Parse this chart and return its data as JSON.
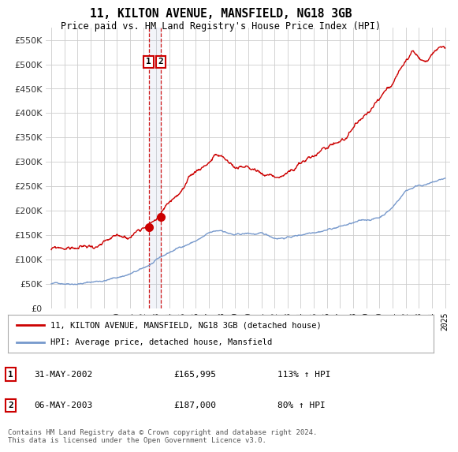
{
  "title": "11, KILTON AVENUE, MANSFIELD, NG18 3GB",
  "subtitle": "Price paid vs. HM Land Registry's House Price Index (HPI)",
  "ylim": [
    0,
    575000
  ],
  "yticks": [
    0,
    50000,
    100000,
    150000,
    200000,
    250000,
    300000,
    350000,
    400000,
    450000,
    500000,
    550000
  ],
  "hpi_color": "#7799cc",
  "price_color": "#cc0000",
  "background_color": "#ffffff",
  "grid_color": "#cccccc",
  "purchase_dates": [
    2002.415,
    2003.347
  ],
  "purchase_prices": [
    165995,
    187000
  ],
  "purchase_labels": [
    "1",
    "2"
  ],
  "legend_entries": [
    "11, KILTON AVENUE, MANSFIELD, NG18 3GB (detached house)",
    "HPI: Average price, detached house, Mansfield"
  ],
  "table_rows": [
    [
      "1",
      "31-MAY-2002",
      "£165,995",
      "113% ↑ HPI"
    ],
    [
      "2",
      "06-MAY-2003",
      "£187,000",
      "80% ↑ HPI"
    ]
  ],
  "footnote": "Contains HM Land Registry data © Crown copyright and database right 2024.\nThis data is licensed under the Open Government Licence v3.0.",
  "vline_dates": [
    2002.415,
    2003.347
  ],
  "xlim": [
    1994.6,
    2025.4
  ],
  "xticks_start": 1995,
  "xticks_end": 2025
}
